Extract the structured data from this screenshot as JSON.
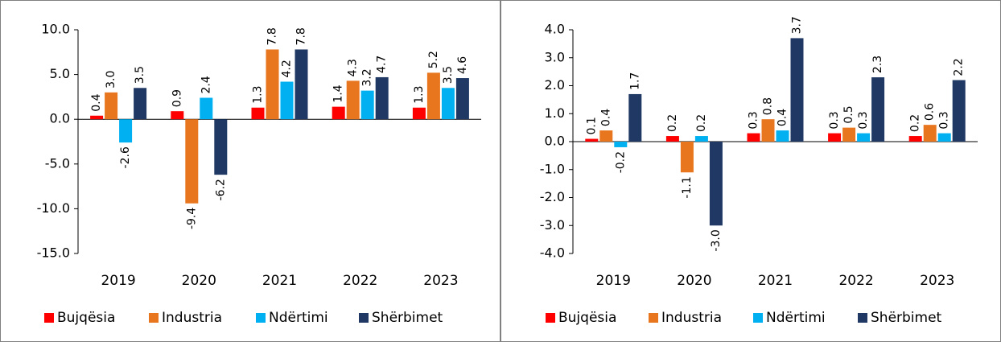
{
  "chart_data": [
    {
      "type": "bar",
      "categories": [
        "2019",
        "2020",
        "2021",
        "2022",
        "2023"
      ],
      "ylim": [
        -15,
        10
      ],
      "yticks": [
        {
          "value": -15,
          "label": "-15.0"
        },
        {
          "value": -10,
          "label": "-10.0"
        },
        {
          "value": -5,
          "label": "-5.0"
        },
        {
          "value": 0,
          "label": "0.0"
        },
        {
          "value": 5,
          "label": "5.0"
        },
        {
          "value": 10,
          "label": "10.0"
        }
      ],
      "legend": "bottom",
      "series": [
        {
          "name": "Bujqësia",
          "color": "#ff0000",
          "values": [
            0.4,
            0.9,
            1.3,
            1.4,
            1.3
          ],
          "value_labels": [
            "0.4",
            "0.9",
            "1.3",
            "1.4",
            "1.3"
          ]
        },
        {
          "name": "Industria",
          "color": "#e8761e",
          "values": [
            3.0,
            -9.4,
            7.8,
            4.3,
            5.2
          ],
          "value_labels": [
            "3.0",
            "-9.4",
            "7.8",
            "4.3",
            "5.2"
          ]
        },
        {
          "name": "Ndërtimi",
          "color": "#00b0f0",
          "values": [
            -2.6,
            2.4,
            4.2,
            3.2,
            3.5
          ],
          "value_labels": [
            "-2.6",
            "2.4",
            "4.2",
            "3.2",
            "3.5"
          ]
        },
        {
          "name": "Shërbimet",
          "color": "#1f3864",
          "values": [
            3.5,
            -6.2,
            7.8,
            4.7,
            4.6
          ],
          "value_labels": [
            "3.5",
            "-6.2",
            "7.8",
            "4.7",
            "4.6"
          ]
        }
      ]
    },
    {
      "type": "bar",
      "categories": [
        "2019",
        "2020",
        "2021",
        "2022",
        "2023"
      ],
      "ylim": [
        -4,
        4
      ],
      "yticks": [
        {
          "value": -4,
          "label": "-4.0"
        },
        {
          "value": -3,
          "label": "-3.0"
        },
        {
          "value": -2,
          "label": "-2.0"
        },
        {
          "value": -1,
          "label": "-1.0"
        },
        {
          "value": 0,
          "label": "0.0"
        },
        {
          "value": 1,
          "label": "1.0"
        },
        {
          "value": 2,
          "label": "2.0"
        },
        {
          "value": 3,
          "label": "3.0"
        },
        {
          "value": 4,
          "label": "4.0"
        }
      ],
      "legend": "bottom",
      "series": [
        {
          "name": "Bujqësia",
          "color": "#ff0000",
          "values": [
            0.1,
            0.2,
            0.3,
            0.3,
            0.2
          ],
          "value_labels": [
            "0.1",
            "0.2",
            "0.3",
            "0.3",
            "0.2"
          ]
        },
        {
          "name": "Industria",
          "color": "#e8761e",
          "values": [
            0.4,
            -1.1,
            0.8,
            0.5,
            0.6
          ],
          "value_labels": [
            "0.4",
            "-1.1",
            "0.8",
            "0.5",
            "0.6"
          ]
        },
        {
          "name": "Ndërtimi",
          "color": "#00b0f0",
          "values": [
            -0.2,
            0.2,
            0.4,
            0.3,
            0.3
          ],
          "value_labels": [
            "-0.2",
            "0.2",
            "0.4",
            "0.3",
            "0.3"
          ]
        },
        {
          "name": "Shërbimet",
          "color": "#1f3864",
          "values": [
            1.7,
            -3.0,
            3.7,
            2.3,
            2.2
          ],
          "value_labels": [
            "1.7",
            "-3.0",
            "3.7",
            "2.3",
            "2.2"
          ]
        }
      ]
    }
  ]
}
